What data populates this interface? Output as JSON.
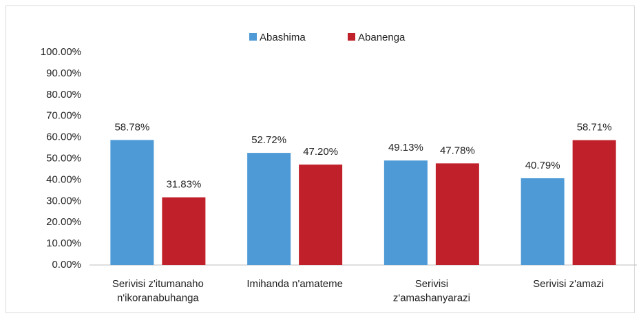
{
  "chart_data": {
    "type": "bar",
    "categories": [
      "Serivisi z'itumanaho\nn'ikoranabuhanga",
      "Imihanda n'amateme",
      "Serivisi\nz'amashanyarazi",
      "Serivisi z'amazi"
    ],
    "series": [
      {
        "name": "Abashima",
        "color": "#4e9ad6",
        "values": [
          58.78,
          52.72,
          49.13,
          40.79
        ],
        "value_labels": [
          "58.78%",
          "52.72%",
          "49.13%",
          "40.79%"
        ]
      },
      {
        "name": "Abanenga",
        "color": "#c0202a",
        "values": [
          31.83,
          47.2,
          47.78,
          58.71
        ],
        "value_labels": [
          "31.83%",
          "47.20%",
          "47.78%",
          "58.71%"
        ]
      }
    ],
    "ylim": [
      0,
      100
    ],
    "yticks": [
      {
        "value": 0,
        "label": "0.00%"
      },
      {
        "value": 10,
        "label": "10.00%"
      },
      {
        "value": 20,
        "label": "20.00%"
      },
      {
        "value": 30,
        "label": "30.00%"
      },
      {
        "value": 40,
        "label": "40.00%"
      },
      {
        "value": 50,
        "label": "50.00%"
      },
      {
        "value": 60,
        "label": "60.00%"
      },
      {
        "value": 70,
        "label": "70.00%"
      },
      {
        "value": 80,
        "label": "80.00%"
      },
      {
        "value": 90,
        "label": "90.00%"
      },
      {
        "value": 100,
        "label": "100.00%"
      }
    ],
    "grid": false,
    "legend": "top"
  }
}
